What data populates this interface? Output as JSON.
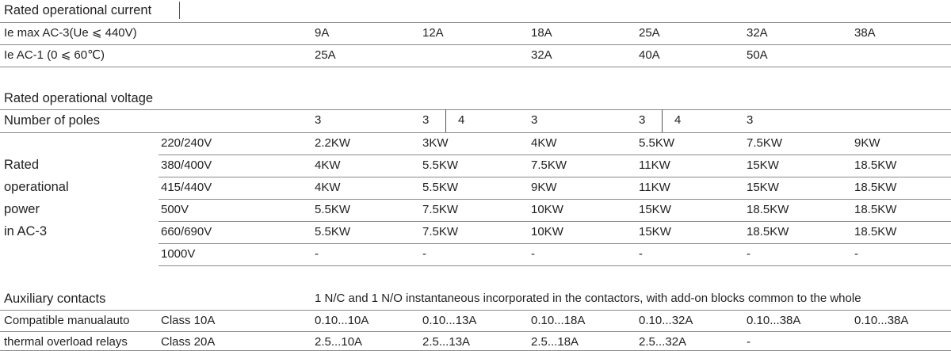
{
  "current": {
    "title": "Rated operational current",
    "rows": [
      {
        "label": "Ie max AC-3(Ue ⩽ 440V)",
        "values": [
          "9A",
          "12A",
          "18A",
          "25A",
          "32A",
          "38A"
        ]
      },
      {
        "label": "Ie AC-1 (0 ⩽ 60℃)",
        "values": [
          "25A",
          null,
          "32A",
          "40A",
          "50A",
          null
        ]
      }
    ]
  },
  "voltage": {
    "title": "Rated operational voltage",
    "poles": {
      "label": "Number of poles",
      "values": [
        [
          "3"
        ],
        [
          "3",
          "4"
        ],
        [
          "3"
        ],
        [
          "3",
          "4"
        ],
        [
          "3"
        ]
      ]
    },
    "power": {
      "label_lines": [
        "Rated",
        "operational",
        "power",
        "in AC-3"
      ],
      "rows": [
        {
          "voltage": "220/240V",
          "values": [
            "2.2KW",
            "3KW",
            "4KW",
            "5.5KW",
            "7.5KW",
            "9KW"
          ]
        },
        {
          "voltage": "380/400V",
          "values": [
            "4KW",
            "5.5KW",
            "7.5KW",
            "11KW",
            "15KW",
            "18.5KW"
          ]
        },
        {
          "voltage": "415/440V",
          "values": [
            "4KW",
            "5.5KW",
            "9KW",
            "11KW",
            "15KW",
            "18.5KW"
          ]
        },
        {
          "voltage": "500V",
          "values": [
            "5.5KW",
            "7.5KW",
            "10KW",
            "15KW",
            "18.5KW",
            "18.5KW"
          ]
        },
        {
          "voltage": "660/690V",
          "values": [
            "5.5KW",
            "7.5KW",
            "10KW",
            "15KW",
            "18.5KW",
            "18.5KW"
          ]
        },
        {
          "voltage": "1000V",
          "values": [
            "-",
            "-",
            "-",
            "-",
            "-",
            "-"
          ]
        }
      ]
    }
  },
  "auxiliary": {
    "label": "Auxiliary contacts",
    "text": "1 N/C and 1 N/O instantaneous incorporated in the contactors, with add-on blocks common to the whole",
    "relays": {
      "label_lines": [
        "Compatible manualauto",
        "thermal overload relays"
      ],
      "rows": [
        {
          "class": "Class 10A",
          "values": [
            "0.10...10A",
            "0.10...13A",
            "0.10...18A",
            "0.10...32A",
            "0.10...38A",
            "0.10...38A"
          ]
        },
        {
          "class": "Class 20A",
          "values": [
            "2.5...10A",
            "2.5...13A",
            "2.5...18A",
            "2.5...32A",
            "-"
          ]
        }
      ]
    }
  }
}
